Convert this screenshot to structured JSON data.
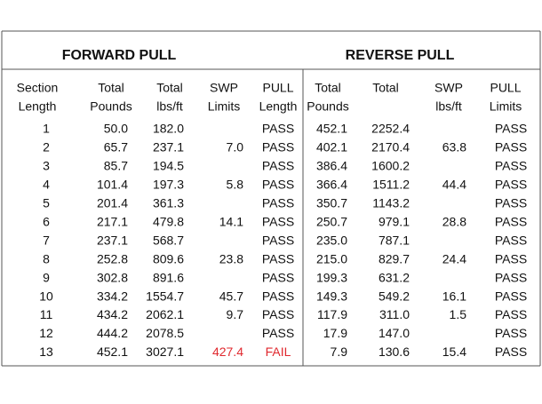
{
  "table": {
    "groups": [
      "FORWARD PULL",
      "REVERSE PULL"
    ],
    "headers": [
      [
        "Section",
        "Length"
      ],
      [
        "Total",
        "Pounds"
      ],
      [
        "Total",
        "lbs/ft"
      ],
      [
        "SWP",
        "Limits"
      ],
      [
        "PULL",
        "Length"
      ],
      [
        "Total",
        "Pounds"
      ],
      [
        "Total"
      ],
      [
        "SWP",
        "lbs/ft"
      ],
      [
        "PULL",
        "Limits"
      ]
    ],
    "rows": [
      [
        "1",
        "50.0",
        "182.0",
        null,
        "PASS",
        "452.1",
        "2252.4",
        null,
        "PASS"
      ],
      [
        "2",
        "65.7",
        "237.1",
        "7.0",
        "PASS",
        "402.1",
        "2170.4",
        "63.8",
        "PASS"
      ],
      [
        "3",
        "85.7",
        "194.5",
        null,
        "PASS",
        "386.4",
        "1600.2",
        null,
        "PASS"
      ],
      [
        "4",
        "101.4",
        "197.3",
        "5.8",
        "PASS",
        "366.4",
        "1511.2",
        "44.4",
        "PASS"
      ],
      [
        "5",
        "201.4",
        "361.3",
        null,
        "PASS",
        "350.7",
        "1143.2",
        null,
        "PASS"
      ],
      [
        "6",
        "217.1",
        "479.8",
        "14.1",
        "PASS",
        "250.7",
        "979.1",
        "28.8",
        "PASS"
      ],
      [
        "7",
        "237.1",
        "568.7",
        null,
        "PASS",
        "235.0",
        "787.1",
        null,
        "PASS"
      ],
      [
        "8",
        "252.8",
        "809.6",
        "23.8",
        "PASS",
        "215.0",
        "829.7",
        "24.4",
        "PASS"
      ],
      [
        "9",
        "302.8",
        "891.6",
        null,
        "PASS",
        "199.3",
        "631.2",
        null,
        "PASS"
      ],
      [
        "10",
        "334.2",
        "1554.7",
        "45.7",
        "PASS",
        "149.3",
        "549.2",
        "16.1",
        "PASS"
      ],
      [
        "11",
        "434.2",
        "2062.1",
        "9.7",
        "PASS",
        "117.9",
        "311.0",
        "1.5",
        "PASS"
      ],
      [
        "12",
        "444.2",
        "2078.5",
        null,
        "PASS",
        "17.9",
        "147.0",
        null,
        "PASS"
      ],
      [
        "13",
        "452.1",
        "3027.1",
        "427.4",
        "FAIL",
        "7.9",
        "130.6",
        "15.4",
        "PASS"
      ]
    ],
    "highlight": {
      "color": "#e0282e",
      "cells": [
        [
          12,
          3
        ],
        [
          12,
          4
        ]
      ]
    }
  }
}
